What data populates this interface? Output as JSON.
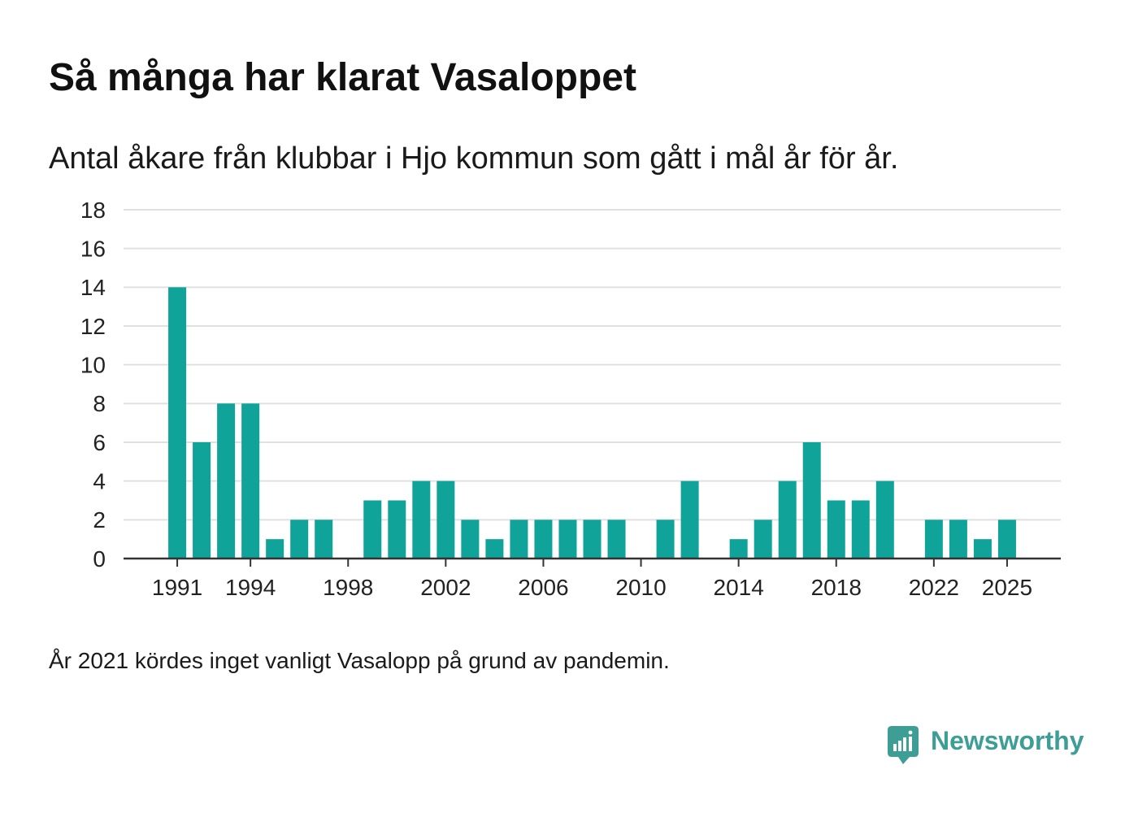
{
  "chart_data": {
    "type": "bar",
    "title": "Så många har klarat Vasaloppet",
    "subtitle": "Antal åkare från klubbar i Hjo kommun som gått i mål år för år.",
    "note": "År 2021 kördes inget vanligt Vasalopp på grund av pandemin.",
    "xlabel": "",
    "ylabel": "",
    "x": [
      1991,
      1992,
      1993,
      1994,
      1995,
      1996,
      1997,
      1998,
      1999,
      2000,
      2001,
      2002,
      2003,
      2004,
      2005,
      2006,
      2007,
      2008,
      2009,
      2010,
      2011,
      2012,
      2013,
      2014,
      2015,
      2016,
      2017,
      2018,
      2019,
      2020,
      2021,
      2022,
      2023,
      2024,
      2025
    ],
    "values": [
      14,
      6,
      8,
      8,
      1,
      2,
      2,
      0,
      3,
      3,
      4,
      4,
      2,
      1,
      2,
      2,
      2,
      2,
      2,
      0,
      2,
      4,
      0,
      1,
      2,
      4,
      6,
      3,
      3,
      4,
      null,
      2,
      2,
      1,
      2
    ],
    "xticks": [
      1991,
      1994,
      1998,
      2002,
      2006,
      2010,
      2014,
      2018,
      2022,
      2025
    ],
    "yticks": [
      0,
      2,
      4,
      6,
      8,
      10,
      12,
      14,
      16,
      18
    ],
    "xlim": [
      1988.8,
      2027.2
    ],
    "ylim": [
      0,
      18
    ],
    "grid": true
  },
  "brand": {
    "name": "Newsworthy",
    "icon": "newsworthy-logo-icon"
  },
  "colors": {
    "bar": "#0fa39a",
    "grid": "#e0e0e0",
    "axis": "#333333",
    "text": "#111111",
    "brand": "#3d9e96"
  }
}
